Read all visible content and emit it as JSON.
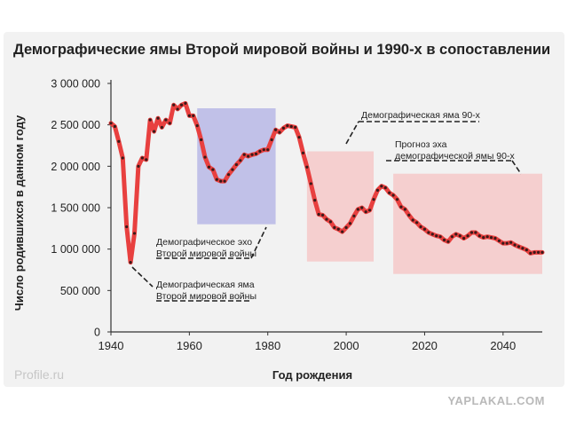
{
  "title": "Демографические ямы Второй мировой войны и 1990-х в сопоставлении",
  "source": "Profile.ru",
  "watermark": "YAPLAKAL.COM",
  "colors": {
    "line": "#e8403f",
    "dots": "#3a1a1a",
    "echo_box": "#b9b9e6",
    "hole_box": "#f6c3c3",
    "axis": "#333333",
    "text": "#222222"
  },
  "chart_data": {
    "type": "line",
    "title": "Демографические ямы Второй мировой войны и 1990-х в сопоставлении",
    "xlabel": "Год рождения",
    "ylabel": "Число родившихся в данном году",
    "xlim": [
      1940,
      2050
    ],
    "ylim": [
      0,
      3000000
    ],
    "x_ticks": [
      1940,
      1960,
      1980,
      2000,
      2020,
      2040
    ],
    "x_tick_labels": [
      "1940",
      "1960",
      "1980",
      "2000",
      "2020",
      "2040"
    ],
    "y_ticks": [
      0,
      500000,
      1000000,
      1500000,
      2000000,
      2500000,
      3000000
    ],
    "y_tick_labels": [
      "0",
      "500 000",
      "1 000 000",
      "1 500 000",
      "2 000 000",
      "2 500 000",
      "3 000 000"
    ],
    "grid": false,
    "x": [
      1940,
      1941,
      1942,
      1943,
      1944,
      1945,
      1946,
      1947,
      1948,
      1949,
      1950,
      1951,
      1952,
      1953,
      1954,
      1955,
      1956,
      1957,
      1958,
      1959,
      1960,
      1961,
      1962,
      1963,
      1964,
      1965,
      1966,
      1967,
      1968,
      1969,
      1970,
      1971,
      1972,
      1973,
      1974,
      1975,
      1976,
      1977,
      1978,
      1979,
      1980,
      1981,
      1982,
      1983,
      1984,
      1985,
      1986,
      1987,
      1988,
      1989,
      1990,
      1991,
      1992,
      1993,
      1994,
      1995,
      1996,
      1997,
      1998,
      1999,
      2000,
      2001,
      2002,
      2003,
      2004,
      2005,
      2006,
      2007,
      2008,
      2009,
      2010,
      2011,
      2012,
      2013,
      2014,
      2015,
      2016,
      2017,
      2018,
      2019,
      2020,
      2021,
      2022,
      2023,
      2024,
      2025,
      2026,
      2027,
      2028,
      2029,
      2030,
      2031,
      2032,
      2033,
      2034,
      2035,
      2036,
      2037,
      2038,
      2039,
      2040,
      2041,
      2042,
      2043,
      2044,
      2045,
      2046,
      2047,
      2048,
      2049,
      2050
    ],
    "y": [
      2520000,
      2480000,
      2300000,
      2100000,
      1270000,
      840000,
      1190000,
      2000000,
      2100000,
      2080000,
      2560000,
      2420000,
      2580000,
      2470000,
      2560000,
      2520000,
      2740000,
      2690000,
      2740000,
      2760000,
      2610000,
      2610000,
      2490000,
      2320000,
      2110000,
      1990000,
      1960000,
      1840000,
      1820000,
      1820000,
      1900000,
      1960000,
      2020000,
      2070000,
      2140000,
      2120000,
      2140000,
      2150000,
      2180000,
      2200000,
      2200000,
      2320000,
      2440000,
      2410000,
      2460000,
      2490000,
      2480000,
      2470000,
      2350000,
      2160000,
      1990000,
      1790000,
      1590000,
      1420000,
      1410000,
      1360000,
      1330000,
      1260000,
      1240000,
      1210000,
      1260000,
      1310000,
      1400000,
      1480000,
      1500000,
      1450000,
      1470000,
      1600000,
      1710000,
      1760000,
      1740000,
      1680000,
      1650000,
      1600000,
      1510000,
      1480000,
      1410000,
      1350000,
      1320000,
      1270000,
      1240000,
      1200000,
      1180000,
      1160000,
      1150000,
      1110000,
      1090000,
      1150000,
      1180000,
      1160000,
      1130000,
      1160000,
      1200000,
      1200000,
      1160000,
      1140000,
      1150000,
      1140000,
      1130000,
      1100000,
      1070000,
      1070000,
      1080000,
      1050000,
      1030000,
      1010000,
      990000,
      950000,
      960000,
      960000,
      960000
    ],
    "annotations": [
      {
        "text_lines": [
          "Демографическая яма",
          "Второй мировой войны"
        ],
        "x": 1945,
        "y": 840000
      },
      {
        "text_lines": [
          "Демографическое эхо",
          "Второй мировой войны"
        ],
        "box": {
          "x0": 1962,
          "x1": 1982,
          "y0": 1300000,
          "y1": 2700000
        }
      },
      {
        "text_lines": [
          "Демографическая яма 90-х"
        ],
        "box": {
          "x0": 1990,
          "x1": 2007,
          "y0": 850000,
          "y1": 2180000
        }
      },
      {
        "text_lines": [
          "Прогноз эха",
          "демографической ямы 90-х"
        ],
        "box": {
          "x0": 2012,
          "x1": 2050,
          "y0": 700000,
          "y1": 1910000
        }
      }
    ]
  }
}
